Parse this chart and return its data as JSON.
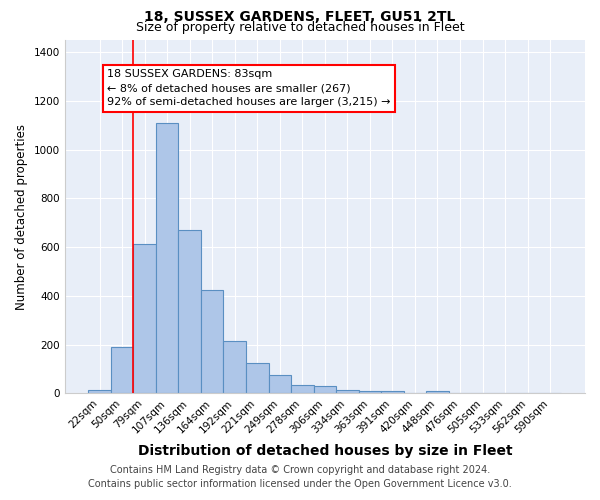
{
  "title": "18, SUSSEX GARDENS, FLEET, GU51 2TL",
  "subtitle": "Size of property relative to detached houses in Fleet",
  "xlabel": "Distribution of detached houses by size in Fleet",
  "ylabel": "Number of detached properties",
  "categories": [
    "22sqm",
    "50sqm",
    "79sqm",
    "107sqm",
    "136sqm",
    "164sqm",
    "192sqm",
    "221sqm",
    "249sqm",
    "278sqm",
    "306sqm",
    "334sqm",
    "363sqm",
    "391sqm",
    "420sqm",
    "448sqm",
    "476sqm",
    "505sqm",
    "533sqm",
    "562sqm",
    "590sqm"
  ],
  "values": [
    15,
    190,
    615,
    1110,
    670,
    425,
    215,
    125,
    75,
    35,
    32,
    15,
    10,
    8,
    3,
    12,
    0,
    0,
    0,
    0,
    0
  ],
  "bar_color": "#aec6e8",
  "bar_edge_color": "#5a8fc2",
  "background_color": "#e8eef8",
  "grid_color": "#ffffff",
  "red_line_x": 1.5,
  "annotation_line1": "18 SUSSEX GARDENS: 83sqm",
  "annotation_line2": "← 8% of detached houses are smaller (267)",
  "annotation_line3": "92% of semi-detached houses are larger (3,215) →",
  "ylim": [
    0,
    1450
  ],
  "yticks": [
    0,
    200,
    400,
    600,
    800,
    1000,
    1200,
    1400
  ],
  "footnote1": "Contains HM Land Registry data © Crown copyright and database right 2024.",
  "footnote2": "Contains public sector information licensed under the Open Government Licence v3.0.",
  "title_fontsize": 10,
  "subtitle_fontsize": 9,
  "xlabel_fontsize": 10,
  "ylabel_fontsize": 8.5,
  "tick_fontsize": 7.5,
  "footnote_fontsize": 7,
  "ann_fontsize": 8
}
